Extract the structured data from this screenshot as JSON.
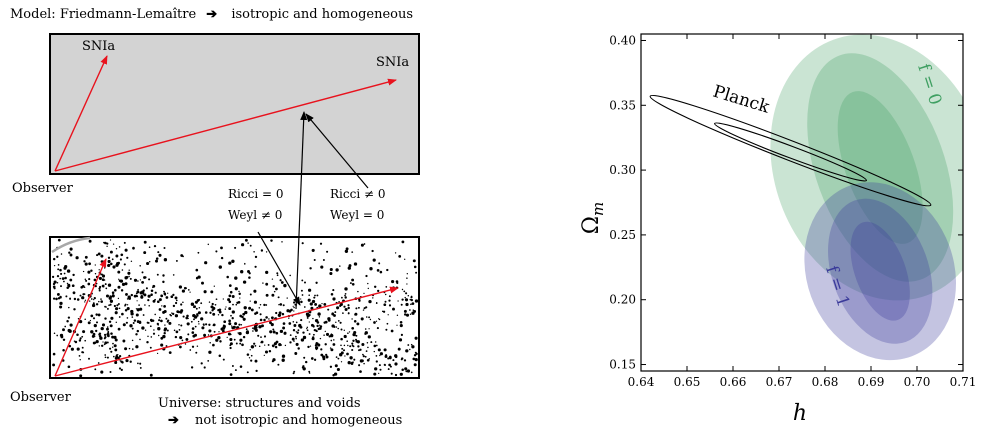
{
  "diagram": {
    "model_caption": "Model: Friedmann-Lemaître",
    "model_arrow_glyph": "➔",
    "model_property": "isotropic and homogeneous",
    "sn_label_left": "SNIa",
    "sn_label_right": "SNIa",
    "observer_top": "Observer",
    "observer_bottom": "Observer",
    "ricci_zero": "Ricci = 0",
    "weyl_nonzero": "Weyl ≠ 0",
    "ricci_nonzero": "Ricci ≠ 0",
    "weyl_zero": "Weyl = 0",
    "universe_caption": "Universe: structures and voids",
    "universe_arrow_glyph": "➔",
    "universe_property": "not isotropic and homogeneous",
    "colors": {
      "model_box": "#d3d3d3",
      "ray": "#e8121d",
      "ink": "#000000"
    }
  },
  "chart_data": {
    "type": "contour",
    "xlabel": "h",
    "ylabel": "Ω",
    "ylabel_subscript": "m",
    "xlim": [
      0.64,
      0.71
    ],
    "ylim": [
      0.145,
      0.405
    ],
    "xticks": [
      "0.64",
      "0.65",
      "0.66",
      "0.67",
      "0.68",
      "0.69",
      "0.70",
      "0.71"
    ],
    "yticks": [
      "0.15",
      "0.20",
      "0.25",
      "0.30",
      "0.35",
      "0.40"
    ],
    "series": [
      {
        "name": "f = 0",
        "color": "#3f9f62",
        "center": [
          0.692,
          0.302
        ],
        "levels": [
          {
            "half_width_h": 0.0075,
            "half_height_om": 0.062,
            "opacity": 0.28
          },
          {
            "half_width_h": 0.014,
            "half_height_om": 0.092,
            "opacity": 0.28
          },
          {
            "half_width_h": 0.023,
            "half_height_om": 0.105,
            "opacity": 0.28
          }
        ]
      },
      {
        "name": "f = 1",
        "color": "#3a3a9a",
        "center": [
          0.692,
          0.222
        ],
        "levels": [
          {
            "half_width_h": 0.0055,
            "half_height_om": 0.04,
            "opacity": 0.3
          },
          {
            "half_width_h": 0.0105,
            "half_height_om": 0.058,
            "opacity": 0.3
          },
          {
            "half_width_h": 0.016,
            "half_height_om": 0.07,
            "opacity": 0.3
          }
        ]
      },
      {
        "name": "Planck",
        "color": "#000000",
        "contours": [
          {
            "from": [
              0.656,
              0.336
            ],
            "to": [
              0.689,
              0.292
            ],
            "half_width_om": 0.0045
          },
          {
            "from": [
              0.642,
              0.357
            ],
            "to": [
              0.703,
              0.273
            ],
            "half_width_om": 0.0075
          }
        ]
      }
    ]
  }
}
